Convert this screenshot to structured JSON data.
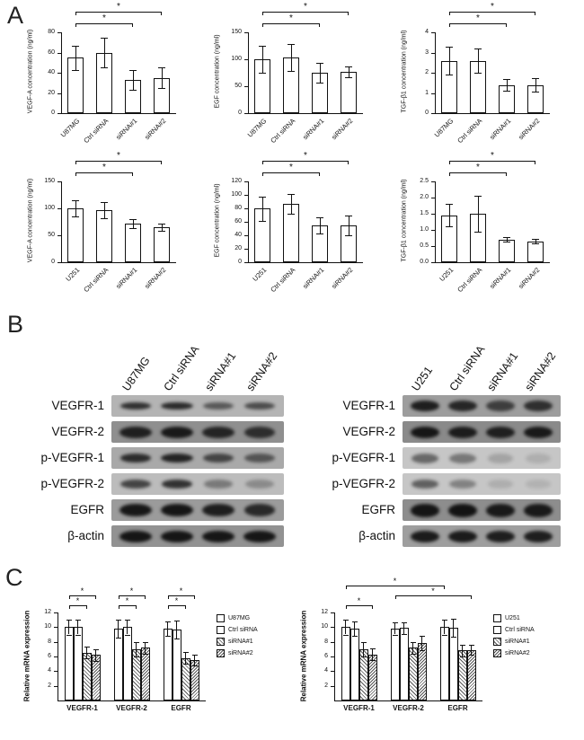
{
  "panels": {
    "a_label": "A",
    "b_label": "B",
    "c_label": "C"
  },
  "sig_label": "*",
  "chart_data": [
    {
      "panel": "A",
      "id": "u87mg-vegf-a",
      "type": "bar",
      "ylabel": "VEGF-A concentration (ng/ml)",
      "categories": [
        "U87MG",
        "Ctrl siRNA",
        "siRNA#1",
        "siRNA#2"
      ],
      "values": [
        55,
        60,
        33,
        35
      ],
      "errors": [
        12,
        15,
        10,
        10
      ],
      "yticks": [
        0,
        20,
        40,
        60,
        80
      ],
      "ylim": [
        0,
        80
      ],
      "tick_decimals": 0,
      "brackets": [
        {
          "from": 0,
          "to": 2,
          "level": 0,
          "label": "*"
        },
        {
          "from": 0,
          "to": 3,
          "level": 1,
          "label": "*"
        }
      ]
    },
    {
      "panel": "A",
      "id": "u87mg-egf",
      "type": "bar",
      "ylabel": "EGF concentration (ng/ml)",
      "categories": [
        "U87MG",
        "Ctrl siRNA",
        "siRNA#1",
        "siRNA#2"
      ],
      "values": [
        100,
        103,
        75,
        76
      ],
      "errors": [
        25,
        25,
        18,
        10
      ],
      "yticks": [
        0,
        50,
        100,
        150
      ],
      "ylim": [
        0,
        150
      ],
      "tick_decimals": 0,
      "brackets": [
        {
          "from": 0,
          "to": 2,
          "level": 0,
          "label": "*"
        },
        {
          "from": 0,
          "to": 3,
          "level": 1,
          "label": "*"
        }
      ]
    },
    {
      "panel": "A",
      "id": "u87mg-tgfb1",
      "type": "bar",
      "ylabel": "TGF-β1 concentration (ng/ml)",
      "categories": [
        "U87MG",
        "Ctrl siRNA",
        "siRNA#1",
        "siRNA#2"
      ],
      "values": [
        2.6,
        2.6,
        1.4,
        1.4
      ],
      "errors": [
        0.7,
        0.6,
        0.3,
        0.35
      ],
      "yticks": [
        0,
        1,
        2,
        3,
        4
      ],
      "ylim": [
        0,
        4
      ],
      "tick_decimals": 0,
      "brackets": [
        {
          "from": 0,
          "to": 2,
          "level": 0,
          "label": "*"
        },
        {
          "from": 0,
          "to": 3,
          "level": 1,
          "label": "*"
        }
      ]
    },
    {
      "panel": "A",
      "id": "u251-vegf-a",
      "type": "bar",
      "ylabel": "VEGF-A concentration (ng/ml)",
      "categories": [
        "U251",
        "Ctrl siRNA",
        "siRNA#1",
        "siRNA#2"
      ],
      "values": [
        100,
        97,
        72,
        65
      ],
      "errors": [
        15,
        15,
        8,
        7
      ],
      "yticks": [
        0,
        50,
        100,
        150
      ],
      "ylim": [
        0,
        150
      ],
      "tick_decimals": 0,
      "brackets": [
        {
          "from": 0,
          "to": 2,
          "level": 0,
          "label": "*"
        },
        {
          "from": 0,
          "to": 3,
          "level": 1,
          "label": "*"
        }
      ]
    },
    {
      "panel": "A",
      "id": "u251-egf",
      "type": "bar",
      "ylabel": "EGF concentration (ng/ml)",
      "categories": [
        "U251",
        "Ctrl siRNA",
        "siRNA#1",
        "siRNA#2"
      ],
      "values": [
        80,
        87,
        55,
        55
      ],
      "errors": [
        18,
        15,
        12,
        15
      ],
      "yticks": [
        0,
        20,
        40,
        60,
        80,
        100,
        120
      ],
      "ylim": [
        0,
        120
      ],
      "tick_decimals": 0,
      "brackets": [
        {
          "from": 0,
          "to": 2,
          "level": 0,
          "label": "*"
        },
        {
          "from": 0,
          "to": 3,
          "level": 1,
          "label": "*"
        }
      ]
    },
    {
      "panel": "A",
      "id": "u251-tgfb1",
      "type": "bar",
      "ylabel": "TGF-β1 concentration (ng/ml)",
      "categories": [
        "U251",
        "Ctrl siRNA",
        "siRNA#1",
        "siRNA#2"
      ],
      "values": [
        1.45,
        1.5,
        0.7,
        0.65
      ],
      "errors": [
        0.35,
        0.55,
        0.07,
        0.07
      ],
      "yticks": [
        0,
        0.5,
        1,
        1.5,
        2,
        2.5
      ],
      "ylim": [
        0,
        2.5
      ],
      "tick_decimals": 1,
      "brackets": [
        {
          "from": 0,
          "to": 2,
          "level": 0,
          "label": "*"
        },
        {
          "from": 0,
          "to": 3,
          "level": 1,
          "label": "*"
        }
      ]
    },
    {
      "panel": "C",
      "id": "u87mg-mrna",
      "type": "grouped_bar",
      "ylabel": "Relative mRNA expression",
      "categories": [
        "VEGFR-1",
        "VEGFR-2",
        "EGFR"
      ],
      "series": [
        {
          "name": "U87MG",
          "pattern": "plain",
          "values": [
            10,
            9.8,
            9.8
          ],
          "errors": [
            1,
            1.2,
            1
          ]
        },
        {
          "name": "Ctrl siRNA",
          "pattern": "plain",
          "values": [
            10,
            10,
            9.7
          ],
          "errors": [
            1,
            1,
            1.2
          ]
        },
        {
          "name": "siRNA#1",
          "pattern": "diag",
          "values": [
            6.5,
            7,
            5.8
          ],
          "errors": [
            0.8,
            1,
            0.8
          ]
        },
        {
          "name": "siRNA#2",
          "pattern": "diag-dense",
          "values": [
            6.2,
            7.2,
            5.5
          ],
          "errors": [
            0.8,
            0.8,
            0.7
          ]
        }
      ],
      "yticks": [
        2,
        4,
        6,
        8,
        10,
        12
      ],
      "ylim": [
        0,
        12
      ],
      "tick_decimals": 0,
      "legend_position": "right",
      "brackets": [
        {
          "x1": [
            0,
            0
          ],
          "x2": [
            0,
            2
          ],
          "level": 0,
          "label": "*"
        },
        {
          "x1": [
            0,
            0
          ],
          "x2": [
            0,
            3
          ],
          "level": 1,
          "label": "*"
        },
        {
          "x1": [
            1,
            0
          ],
          "x2": [
            1,
            2
          ],
          "level": 0,
          "label": "*"
        },
        {
          "x1": [
            1,
            0
          ],
          "x2": [
            1,
            3
          ],
          "level": 1,
          "label": "*"
        },
        {
          "x1": [
            2,
            0
          ],
          "x2": [
            2,
            2
          ],
          "level": 0,
          "label": "*"
        },
        {
          "x1": [
            2,
            0
          ],
          "x2": [
            2,
            3
          ],
          "level": 1,
          "label": "*"
        }
      ]
    },
    {
      "panel": "C",
      "id": "u251-mrna",
      "type": "grouped_bar",
      "ylabel": "Relative mRNA expression",
      "categories": [
        "VEGFR-1",
        "VEGFR-2",
        "EGFR"
      ],
      "series": [
        {
          "name": "U251",
          "pattern": "plain",
          "values": [
            10,
            9.8,
            10
          ],
          "errors": [
            1,
            0.8,
            1
          ]
        },
        {
          "name": "Ctrl siRNA",
          "pattern": "plain",
          "values": [
            9.8,
            9.9,
            9.9
          ],
          "errors": [
            1,
            0.8,
            1.2
          ]
        },
        {
          "name": "siRNA#1",
          "pattern": "diag",
          "values": [
            7,
            7.2,
            6.8
          ],
          "errors": [
            1,
            0.8,
            0.8
          ]
        },
        {
          "name": "siRNA#2",
          "pattern": "diag-dense",
          "values": [
            6.3,
            7.8,
            6.9
          ],
          "errors": [
            0.8,
            1,
            0.7
          ]
        }
      ],
      "yticks": [
        2,
        4,
        6,
        8,
        10,
        12
      ],
      "ylim": [
        0,
        12
      ],
      "tick_decimals": 0,
      "legend_position": "right",
      "brackets": [
        {
          "x1": [
            0,
            0
          ],
          "x2": [
            0,
            3
          ],
          "level": 0,
          "label": "*"
        },
        {
          "x1": [
            1,
            0
          ],
          "x2": [
            2,
            3
          ],
          "level": 1,
          "label": "*"
        },
        {
          "x1": [
            0,
            0
          ],
          "x2": [
            2,
            0
          ],
          "level": 2,
          "label": "*"
        }
      ]
    }
  ],
  "western_blots": [
    {
      "cell_line": "U87MG",
      "lanes": [
        "U87MG",
        "Ctrl siRNA",
        "siRNA#1",
        "siRNA#2"
      ],
      "rows": [
        {
          "label": "VEGFR-1",
          "bg": "#b4b4b4",
          "band_height": 8,
          "bands": [
            0.78,
            0.82,
            0.55,
            0.62
          ]
        },
        {
          "label": "VEGFR-2",
          "bg": "#8f8f8f",
          "band_height": 13,
          "bands": [
            0.85,
            0.9,
            0.82,
            0.75
          ]
        },
        {
          "label": "p-VEGFR-1",
          "bg": "#a9a9a9",
          "band_height": 10,
          "bands": [
            0.8,
            0.85,
            0.65,
            0.55
          ]
        },
        {
          "label": "p-VEGFR-2",
          "bg": "#bcbcbc",
          "band_height": 10,
          "bands": [
            0.68,
            0.78,
            0.38,
            0.28
          ]
        },
        {
          "label": "EGFR",
          "bg": "#9b9b9b",
          "band_height": 14,
          "bands": [
            0.92,
            0.93,
            0.88,
            0.8
          ]
        },
        {
          "label": "β-actin",
          "bg": "#929292",
          "band_height": 13,
          "bands": [
            0.93,
            0.93,
            0.92,
            0.92
          ]
        }
      ]
    },
    {
      "cell_line": "U251",
      "lanes": [
        "U251",
        "Ctrl siRNA",
        "siRNA#1",
        "siRNA#2"
      ],
      "rows": [
        {
          "label": "VEGFR-1",
          "bg": "#9d9d9d",
          "band_height": 12,
          "bands": [
            0.88,
            0.82,
            0.66,
            0.76
          ]
        },
        {
          "label": "VEGFR-2",
          "bg": "#8a8a8a",
          "band_height": 13,
          "bands": [
            0.92,
            0.88,
            0.85,
            0.9
          ]
        },
        {
          "label": "p-VEGFR-1",
          "bg": "#c6c6c6",
          "band_height": 11,
          "bands": [
            0.5,
            0.42,
            0.18,
            0.12
          ]
        },
        {
          "label": "p-VEGFR-2",
          "bg": "#c6c6c6",
          "band_height": 10,
          "bands": [
            0.55,
            0.36,
            0.13,
            0.1
          ]
        },
        {
          "label": "EGFR",
          "bg": "#8d8d8d",
          "band_height": 15,
          "bands": [
            0.93,
            0.94,
            0.9,
            0.9
          ]
        },
        {
          "label": "β-actin",
          "bg": "#9e9e9e",
          "band_height": 13,
          "bands": [
            0.9,
            0.9,
            0.88,
            0.88
          ]
        }
      ]
    }
  ]
}
